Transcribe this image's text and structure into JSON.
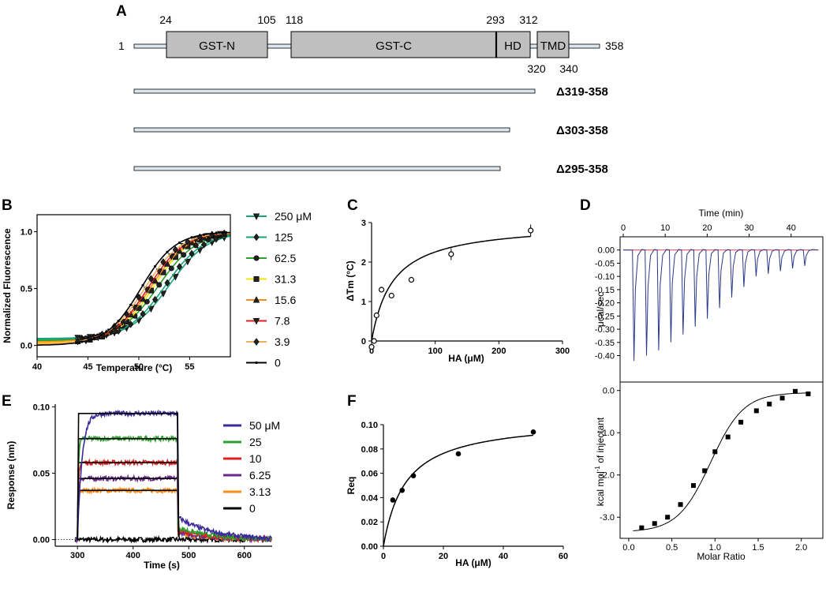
{
  "panels": {
    "A": {
      "label": "A",
      "protein_length": "358",
      "start": "1",
      "domains": [
        {
          "name": "GST-N",
          "start": "24",
          "end": "105"
        },
        {
          "name": "GST-C",
          "start": "118",
          "end": "293"
        },
        {
          "name": "HD",
          "start": "293",
          "end": "312"
        },
        {
          "name": "TMD",
          "start": "320",
          "end": "340"
        }
      ],
      "position_labels": [
        "24",
        "105",
        "118",
        "293",
        "312",
        "320",
        "340"
      ],
      "deletions": [
        {
          "label": "Δ319-358",
          "end": 318
        },
        {
          "label": "Δ303-358",
          "end": 302
        },
        {
          "label": "Δ295-358",
          "end": 294
        }
      ]
    },
    "B": {
      "label": "B"
    },
    "C": {
      "label": "C"
    },
    "D": {
      "label": "D"
    },
    "E": {
      "label": "E"
    },
    "F": {
      "label": "F"
    }
  },
  "colors": {
    "domain_fill": "#bfbfbf",
    "bar_fill": "#dde6ee",
    "black": "#000000",
    "green_dark": "#1aa37a",
    "green": "#2ca02c",
    "yellow": "#f2e500",
    "orange": "#ff8c1a",
    "red": "#e02020",
    "tan": "#f0b060",
    "blue": "#3a2a9a",
    "purple": "#6a2a8a",
    "itc_line": "#2a3a8a",
    "itc_base": "#e04050"
  },
  "chart_data": [
    {
      "panel": "B",
      "type": "line",
      "title": "",
      "xlabel": "Temperature (°C)",
      "ylabel": "Normalized Fluorescence",
      "xlim": [
        40,
        59
      ],
      "ylim": [
        -0.1,
        1.15
      ],
      "xticks": [
        40,
        45,
        50,
        55
      ],
      "yticks": [
        0.0,
        0.5,
        1.0
      ],
      "legend_position": "right",
      "series": [
        {
          "name": "250 μM",
          "tm": 53.0,
          "slope": 1.9,
          "base": 0.06,
          "marker": "tri-down",
          "color": "#1aa37a"
        },
        {
          "name": "125",
          "tm": 52.6,
          "slope": 1.9,
          "base": 0.05,
          "marker": "diamond",
          "color": "#1aa37a"
        },
        {
          "name": "62.5",
          "tm": 51.9,
          "slope": 1.9,
          "base": 0.04,
          "marker": "circle",
          "color": "#2ca02c"
        },
        {
          "name": "31.3",
          "tm": 51.4,
          "slope": 1.8,
          "base": 0.02,
          "marker": "square",
          "color": "#f2e500"
        },
        {
          "name": "15.6",
          "tm": 51.2,
          "slope": 1.8,
          "base": 0.03,
          "marker": "triangle",
          "color": "#ff8c1a"
        },
        {
          "name": "7.8",
          "tm": 50.9,
          "slope": 1.8,
          "base": 0.01,
          "marker": "tri-down",
          "color": "#e02020"
        },
        {
          "name": "3.9",
          "tm": 50.6,
          "slope": 1.8,
          "base": 0.01,
          "marker": "diamond",
          "color": "#f0b060"
        },
        {
          "name": "0",
          "tm": 50.2,
          "slope": 1.7,
          "base": 0.0,
          "marker": "dot",
          "color": "#000000"
        }
      ]
    },
    {
      "panel": "C",
      "type": "scatter",
      "title": "",
      "xlabel": "HA (μM)",
      "ylabel": "ΔTm (°C)",
      "xlim": [
        0,
        300
      ],
      "ylim": [
        0,
        3
      ],
      "xticks": [
        0,
        100,
        200,
        300
      ],
      "yticks": [
        0,
        1,
        2,
        3
      ],
      "x": [
        0,
        3.9,
        7.8,
        15.6,
        31.3,
        62.5,
        125,
        250
      ],
      "y": [
        -0.15,
        0.0,
        0.65,
        1.3,
        1.15,
        1.55,
        2.2,
        2.8
      ],
      "yerr": [
        0.05,
        0.05,
        0.05,
        0.05,
        0.05,
        0.05,
        0.15,
        0.15
      ],
      "fit": {
        "model": "hyperbolic",
        "max": 3.0,
        "kd": 33
      }
    },
    {
      "panel": "D",
      "type": "line",
      "title": "",
      "top": {
        "xlabel": "Time (min)",
        "ylabel": "μcal/sec",
        "xlim": [
          0,
          47
        ],
        "ylim": [
          -0.5,
          0.05
        ],
        "xticks": [
          0,
          10,
          20,
          30,
          40
        ],
        "yticks": [
          "0.00",
          "-0.05",
          "-0.10",
          "-0.15",
          "-0.20",
          "-0.25",
          "-0.30",
          "-0.35",
          "-0.40"
        ],
        "injection_times": [
          2.2,
          5.2,
          8.1,
          11.0,
          13.9,
          16.8,
          19.7,
          22.6,
          25.5,
          28.4,
          31.3,
          34.2,
          37.1,
          40.0,
          42.9
        ],
        "peak_heights": [
          -0.42,
          -0.4,
          -0.38,
          -0.35,
          -0.32,
          -0.29,
          -0.26,
          -0.22,
          -0.18,
          -0.14,
          -0.1,
          -0.09,
          -0.08,
          -0.07,
          -0.06
        ]
      },
      "bottom": {
        "xlabel": "Molar Ratio",
        "ylabel": "kcal mol-1 of injectant",
        "xlim": [
          -0.1,
          2.25
        ],
        "ylim": [
          -3.5,
          0.2
        ],
        "xticks": [
          "0.0",
          "0.5",
          "1.0",
          "1.5",
          "2.0"
        ],
        "yticks": [
          "0.0",
          "-1.0",
          "-2.0",
          "-3.0"
        ],
        "x": [
          0.15,
          0.3,
          0.45,
          0.6,
          0.75,
          0.88,
          1.0,
          1.15,
          1.3,
          1.48,
          1.63,
          1.78,
          1.93,
          2.08
        ],
        "y": [
          -3.25,
          -3.15,
          -3.0,
          -2.7,
          -2.25,
          -1.9,
          -1.45,
          -1.1,
          -0.75,
          -0.48,
          -0.32,
          -0.18,
          -0.02,
          -0.08
        ]
      }
    },
    {
      "panel": "E",
      "type": "line",
      "title": "",
      "xlabel": "Time (s)",
      "ylabel": "Response (nm)",
      "xlim": [
        260,
        650
      ],
      "ylim": [
        -0.005,
        0.102
      ],
      "xticks": [
        300,
        400,
        500,
        600
      ],
      "yticks": [
        "0.00",
        "0.05",
        "0.10"
      ],
      "assoc_start": 300,
      "dissoc_start": 480,
      "series": [
        {
          "name": "50 μM",
          "plateau": 0.095,
          "color": "#3a2a9a"
        },
        {
          "name": "25",
          "plateau": 0.076,
          "color": "#2ca02c"
        },
        {
          "name": "10",
          "plateau": 0.058,
          "color": "#e02020"
        },
        {
          "name": "6.25",
          "plateau": 0.046,
          "color": "#6a2a8a"
        },
        {
          "name": "3.13",
          "plateau": 0.037,
          "color": "#ff8c1a"
        },
        {
          "name": "0",
          "plateau": 0.0,
          "color": "#000000"
        }
      ]
    },
    {
      "panel": "F",
      "type": "scatter",
      "title": "",
      "xlabel": "HA (μM)",
      "ylabel": "Req",
      "xlim": [
        0,
        60
      ],
      "ylim": [
        0,
        0.1
      ],
      "xticks": [
        0,
        20,
        40,
        60
      ],
      "yticks": [
        "0.00",
        "0.02",
        "0.04",
        "0.06",
        "0.08",
        "0.10"
      ],
      "x": [
        3.13,
        6.25,
        10,
        25,
        50
      ],
      "y": [
        0.038,
        0.046,
        0.058,
        0.076,
        0.094
      ],
      "fit": {
        "model": "hyperbolic",
        "max": 0.105,
        "kd": 7.5
      }
    }
  ]
}
